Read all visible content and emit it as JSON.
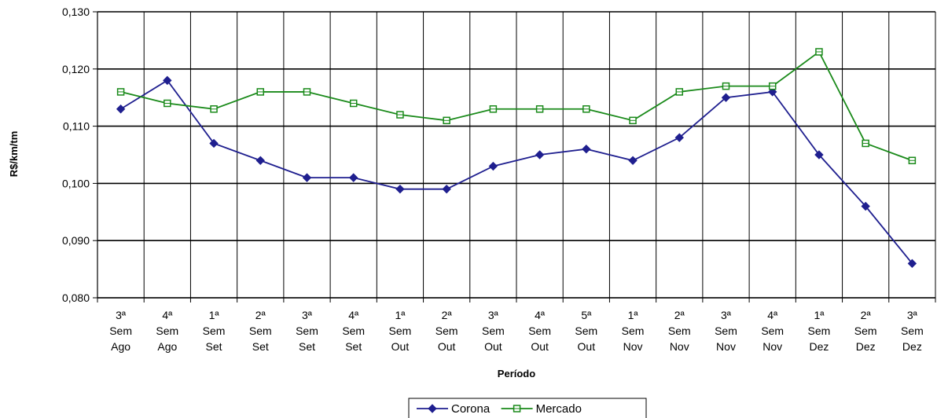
{
  "chart_data": {
    "type": "line",
    "categories": [
      [
        "3ª",
        "Sem",
        "Ago"
      ],
      [
        "4ª",
        "Sem",
        "Ago"
      ],
      [
        "1ª",
        "Sem",
        "Set"
      ],
      [
        "2ª",
        "Sem",
        "Set"
      ],
      [
        "3ª",
        "Sem",
        "Set"
      ],
      [
        "4ª",
        "Sem",
        "Set"
      ],
      [
        "1ª",
        "Sem",
        "Out"
      ],
      [
        "2ª",
        "Sem",
        "Out"
      ],
      [
        "3ª",
        "Sem",
        "Out"
      ],
      [
        "4ª",
        "Sem",
        "Out"
      ],
      [
        "5ª",
        "Sem",
        "Out"
      ],
      [
        "1ª",
        "Sem",
        "Nov"
      ],
      [
        "2ª",
        "Sem",
        "Nov"
      ],
      [
        "3ª",
        "Sem",
        "Nov"
      ],
      [
        "4ª",
        "Sem",
        "Nov"
      ],
      [
        "1ª",
        "Sem",
        "Dez"
      ],
      [
        "2ª",
        "Sem",
        "Dez"
      ],
      [
        "3ª",
        "Sem",
        "Dez"
      ]
    ],
    "series": [
      {
        "name": "Corona",
        "color": "#1f1f8f",
        "marker": "diamond",
        "values": [
          0.113,
          0.118,
          0.107,
          0.104,
          0.101,
          0.101,
          0.099,
          0.099,
          0.103,
          0.105,
          0.106,
          0.104,
          0.108,
          0.115,
          0.116,
          0.105,
          0.096,
          0.086
        ]
      },
      {
        "name": "Mercado",
        "color": "#1a8a1a",
        "marker": "square",
        "values": [
          0.116,
          0.114,
          0.113,
          0.116,
          0.116,
          0.114,
          0.112,
          0.111,
          0.113,
          0.113,
          0.113,
          0.111,
          0.116,
          0.117,
          0.117,
          0.123,
          0.107,
          0.104
        ]
      }
    ],
    "xlabel": "Período",
    "ylabel": "R$/km/tm",
    "ylim": [
      0.08,
      0.13
    ],
    "yticks": [
      "0,080",
      "0,090",
      "0,100",
      "0,110",
      "0,120",
      "0,130"
    ],
    "grid": true,
    "legend_position": "bottom-center"
  }
}
